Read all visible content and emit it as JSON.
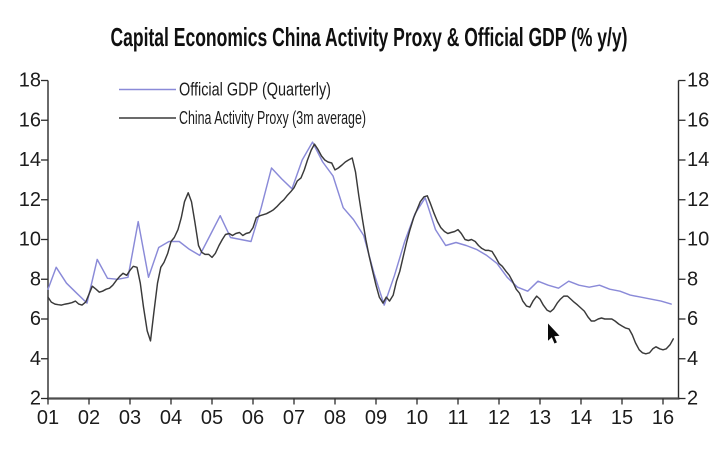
{
  "chart_data": {
    "type": "line",
    "title": "Capital Economics China Activity Proxy & Official GDP (% y/y)",
    "y_axis": {
      "min": 2,
      "max": 18,
      "step": 2,
      "ticks": [
        2,
        4,
        6,
        8,
        10,
        12,
        14,
        16,
        18
      ],
      "mirrored_right_axis": true,
      "grid": false
    },
    "x_axis": {
      "start_year": 2001,
      "end_year_fraction": 2016.38,
      "tick_labels": [
        "01",
        "02",
        "03",
        "04",
        "05",
        "06",
        "07",
        "08",
        "09",
        "10",
        "11",
        "12",
        "13",
        "14",
        "15",
        "16"
      ]
    },
    "legend": {
      "position": "top-left-inside",
      "items": [
        {
          "label": "Official GDP (Quarterly)",
          "color": "#8a8ad8"
        },
        {
          "label": "China Activity Proxy (3m average)",
          "color": "#3a3a3a"
        }
      ]
    },
    "series": [
      {
        "name": "Official GDP (Quarterly)",
        "color": "#8a8ad8",
        "frequency": "quarterly",
        "points": [
          [
            2001.0,
            7.5
          ],
          [
            2001.2,
            8.6
          ],
          [
            2001.45,
            7.8
          ],
          [
            2001.7,
            7.3
          ],
          [
            2001.95,
            6.8
          ],
          [
            2002.2,
            9.0
          ],
          [
            2002.45,
            8.05
          ],
          [
            2002.7,
            8.0
          ],
          [
            2002.95,
            8.1
          ],
          [
            2003.2,
            10.9
          ],
          [
            2003.45,
            8.1
          ],
          [
            2003.7,
            9.6
          ],
          [
            2003.95,
            9.9
          ],
          [
            2004.2,
            9.9
          ],
          [
            2004.45,
            9.5
          ],
          [
            2004.7,
            9.2
          ],
          [
            2004.95,
            10.2
          ],
          [
            2005.2,
            11.2
          ],
          [
            2005.45,
            10.1
          ],
          [
            2005.7,
            10.0
          ],
          [
            2005.95,
            9.9
          ],
          [
            2006.2,
            11.6
          ],
          [
            2006.45,
            13.6
          ],
          [
            2006.7,
            13.05
          ],
          [
            2006.95,
            12.55
          ],
          [
            2007.2,
            14.0
          ],
          [
            2007.45,
            14.9
          ],
          [
            2007.7,
            13.9
          ],
          [
            2007.95,
            13.2
          ],
          [
            2008.2,
            11.6
          ],
          [
            2008.45,
            11.0
          ],
          [
            2008.7,
            10.2
          ],
          [
            2008.95,
            8.3
          ],
          [
            2009.2,
            6.7
          ],
          [
            2009.45,
            8.2
          ],
          [
            2009.7,
            9.9
          ],
          [
            2009.95,
            11.3
          ],
          [
            2010.2,
            12.1
          ],
          [
            2010.45,
            10.5
          ],
          [
            2010.7,
            9.7
          ],
          [
            2010.95,
            9.85
          ],
          [
            2011.2,
            9.7
          ],
          [
            2011.45,
            9.5
          ],
          [
            2011.7,
            9.2
          ],
          [
            2011.95,
            8.8
          ],
          [
            2012.2,
            8.1
          ],
          [
            2012.45,
            7.6
          ],
          [
            2012.7,
            7.4
          ],
          [
            2012.95,
            7.9
          ],
          [
            2013.2,
            7.7
          ],
          [
            2013.45,
            7.55
          ],
          [
            2013.7,
            7.9
          ],
          [
            2013.95,
            7.7
          ],
          [
            2014.2,
            7.6
          ],
          [
            2014.45,
            7.7
          ],
          [
            2014.7,
            7.5
          ],
          [
            2014.95,
            7.4
          ],
          [
            2015.2,
            7.2
          ],
          [
            2015.45,
            7.1
          ],
          [
            2015.7,
            7.0
          ],
          [
            2015.95,
            6.9
          ],
          [
            2016.2,
            6.75
          ]
        ]
      },
      {
        "name": "China Activity Proxy (3m average)",
        "color": "#3a3a3a",
        "frequency": "monthly",
        "points": [
          [
            2001.0,
            7.1
          ],
          [
            2001.08,
            6.85
          ],
          [
            2001.17,
            6.75
          ],
          [
            2001.25,
            6.72
          ],
          [
            2001.33,
            6.7
          ],
          [
            2001.42,
            6.75
          ],
          [
            2001.5,
            6.78
          ],
          [
            2001.58,
            6.82
          ],
          [
            2001.67,
            6.9
          ],
          [
            2001.75,
            6.75
          ],
          [
            2001.83,
            6.7
          ],
          [
            2001.92,
            6.85
          ],
          [
            2002.0,
            7.25
          ],
          [
            2002.08,
            7.65
          ],
          [
            2002.17,
            7.5
          ],
          [
            2002.25,
            7.35
          ],
          [
            2002.33,
            7.4
          ],
          [
            2002.42,
            7.5
          ],
          [
            2002.5,
            7.55
          ],
          [
            2002.58,
            7.7
          ],
          [
            2002.67,
            7.95
          ],
          [
            2002.75,
            8.15
          ],
          [
            2002.83,
            8.3
          ],
          [
            2002.92,
            8.2
          ],
          [
            2003.0,
            8.45
          ],
          [
            2003.08,
            8.65
          ],
          [
            2003.17,
            8.6
          ],
          [
            2003.25,
            7.8
          ],
          [
            2003.33,
            6.6
          ],
          [
            2003.42,
            5.4
          ],
          [
            2003.5,
            4.9
          ],
          [
            2003.58,
            6.3
          ],
          [
            2003.67,
            7.8
          ],
          [
            2003.75,
            8.6
          ],
          [
            2003.83,
            8.85
          ],
          [
            2003.92,
            9.3
          ],
          [
            2004.0,
            9.9
          ],
          [
            2004.08,
            10.1
          ],
          [
            2004.17,
            10.5
          ],
          [
            2004.25,
            11.1
          ],
          [
            2004.33,
            11.9
          ],
          [
            2004.42,
            12.35
          ],
          [
            2004.5,
            11.9
          ],
          [
            2004.58,
            10.9
          ],
          [
            2004.67,
            9.7
          ],
          [
            2004.75,
            9.35
          ],
          [
            2004.83,
            9.25
          ],
          [
            2004.92,
            9.25
          ],
          [
            2005.0,
            9.1
          ],
          [
            2005.08,
            9.3
          ],
          [
            2005.17,
            9.7
          ],
          [
            2005.25,
            10.0
          ],
          [
            2005.33,
            10.25
          ],
          [
            2005.42,
            10.3
          ],
          [
            2005.5,
            10.2
          ],
          [
            2005.58,
            10.3
          ],
          [
            2005.67,
            10.35
          ],
          [
            2005.75,
            10.2
          ],
          [
            2005.83,
            10.3
          ],
          [
            2005.92,
            10.35
          ],
          [
            2006.0,
            10.6
          ],
          [
            2006.08,
            11.1
          ],
          [
            2006.17,
            11.2
          ],
          [
            2006.25,
            11.25
          ],
          [
            2006.33,
            11.3
          ],
          [
            2006.42,
            11.4
          ],
          [
            2006.5,
            11.5
          ],
          [
            2006.58,
            11.65
          ],
          [
            2006.67,
            11.85
          ],
          [
            2006.75,
            12.0
          ],
          [
            2006.83,
            12.2
          ],
          [
            2006.92,
            12.4
          ],
          [
            2007.0,
            12.6
          ],
          [
            2007.08,
            12.95
          ],
          [
            2007.17,
            13.1
          ],
          [
            2007.25,
            13.5
          ],
          [
            2007.33,
            14.0
          ],
          [
            2007.42,
            14.5
          ],
          [
            2007.5,
            14.8
          ],
          [
            2007.58,
            14.55
          ],
          [
            2007.67,
            14.2
          ],
          [
            2007.75,
            14.0
          ],
          [
            2007.83,
            13.9
          ],
          [
            2007.92,
            13.85
          ],
          [
            2008.0,
            13.5
          ],
          [
            2008.08,
            13.6
          ],
          [
            2008.17,
            13.75
          ],
          [
            2008.25,
            13.9
          ],
          [
            2008.33,
            14.0
          ],
          [
            2008.42,
            14.1
          ],
          [
            2008.5,
            13.4
          ],
          [
            2008.58,
            12.2
          ],
          [
            2008.67,
            11.0
          ],
          [
            2008.75,
            10.0
          ],
          [
            2008.83,
            9.2
          ],
          [
            2008.92,
            8.4
          ],
          [
            2009.0,
            7.7
          ],
          [
            2009.08,
            7.1
          ],
          [
            2009.17,
            6.8
          ],
          [
            2009.25,
            7.1
          ],
          [
            2009.33,
            6.9
          ],
          [
            2009.42,
            7.2
          ],
          [
            2009.5,
            7.9
          ],
          [
            2009.58,
            8.4
          ],
          [
            2009.67,
            9.2
          ],
          [
            2009.75,
            9.9
          ],
          [
            2009.83,
            10.5
          ],
          [
            2009.92,
            11.1
          ],
          [
            2010.0,
            11.5
          ],
          [
            2010.08,
            11.9
          ],
          [
            2010.17,
            12.15
          ],
          [
            2010.25,
            12.2
          ],
          [
            2010.33,
            11.8
          ],
          [
            2010.42,
            11.3
          ],
          [
            2010.5,
            10.9
          ],
          [
            2010.58,
            10.6
          ],
          [
            2010.67,
            10.4
          ],
          [
            2010.75,
            10.3
          ],
          [
            2010.83,
            10.35
          ],
          [
            2010.92,
            10.4
          ],
          [
            2011.0,
            10.5
          ],
          [
            2011.08,
            10.3
          ],
          [
            2011.17,
            10.0
          ],
          [
            2011.25,
            9.95
          ],
          [
            2011.33,
            10.0
          ],
          [
            2011.42,
            9.9
          ],
          [
            2011.5,
            9.7
          ],
          [
            2011.58,
            9.55
          ],
          [
            2011.67,
            9.45
          ],
          [
            2011.75,
            9.45
          ],
          [
            2011.83,
            9.4
          ],
          [
            2011.92,
            9.1
          ],
          [
            2012.0,
            8.8
          ],
          [
            2012.08,
            8.65
          ],
          [
            2012.17,
            8.4
          ],
          [
            2012.25,
            8.2
          ],
          [
            2012.33,
            7.9
          ],
          [
            2012.42,
            7.5
          ],
          [
            2012.5,
            7.3
          ],
          [
            2012.58,
            6.9
          ],
          [
            2012.67,
            6.65
          ],
          [
            2012.75,
            6.6
          ],
          [
            2012.83,
            6.9
          ],
          [
            2012.92,
            7.15
          ],
          [
            2013.0,
            7.0
          ],
          [
            2013.08,
            6.7
          ],
          [
            2013.17,
            6.45
          ],
          [
            2013.25,
            6.36
          ],
          [
            2013.33,
            6.5
          ],
          [
            2013.42,
            6.8
          ],
          [
            2013.5,
            7.0
          ],
          [
            2013.58,
            7.15
          ],
          [
            2013.67,
            7.15
          ],
          [
            2013.75,
            7.0
          ],
          [
            2013.83,
            6.85
          ],
          [
            2013.92,
            6.7
          ],
          [
            2014.0,
            6.55
          ],
          [
            2014.08,
            6.4
          ],
          [
            2014.17,
            6.1
          ],
          [
            2014.25,
            5.9
          ],
          [
            2014.33,
            5.9
          ],
          [
            2014.42,
            6.0
          ],
          [
            2014.5,
            6.05
          ],
          [
            2014.58,
            6.0
          ],
          [
            2014.67,
            6.0
          ],
          [
            2014.75,
            6.0
          ],
          [
            2014.83,
            5.9
          ],
          [
            2014.92,
            5.75
          ],
          [
            2015.0,
            5.65
          ],
          [
            2015.08,
            5.55
          ],
          [
            2015.17,
            5.5
          ],
          [
            2015.25,
            5.2
          ],
          [
            2015.33,
            4.8
          ],
          [
            2015.42,
            4.45
          ],
          [
            2015.5,
            4.3
          ],
          [
            2015.58,
            4.25
          ],
          [
            2015.67,
            4.3
          ],
          [
            2015.75,
            4.5
          ],
          [
            2015.83,
            4.6
          ],
          [
            2015.92,
            4.5
          ],
          [
            2016.0,
            4.45
          ],
          [
            2016.08,
            4.5
          ],
          [
            2016.17,
            4.7
          ],
          [
            2016.25,
            5.0
          ]
        ]
      }
    ]
  },
  "cursor": {
    "visible": true
  }
}
